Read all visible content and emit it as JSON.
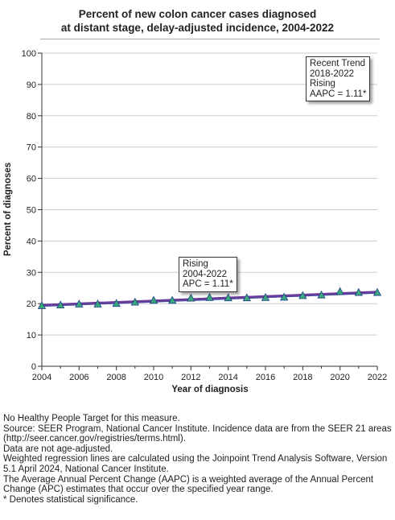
{
  "title_lines": [
    "Percent of new colon cancer cases diagnosed",
    "at distant stage, delay-adjusted incidence, 2004-2022"
  ],
  "annotations": {
    "recent": [
      "Recent Trend",
      "2018-2022",
      "Rising",
      "AAPC =  1.11*"
    ],
    "segment": [
      "Rising",
      "2004-2022",
      "APC =  1.11*"
    ]
  },
  "footnotes": [
    "No Healthy People Target for this measure.",
    "Source: SEER Program, National Cancer Institute. Incidence data are from the SEER 21 areas (http://seer.cancer.gov/registries/terms.html).",
    "Data are not age-adjusted.",
    "Weighted regression lines are calculated using the Joinpoint Trend Analysis Software, Version 5.1 April 2024, National Cancer Institute.",
    "The Average Annual Percent Change (AAPC) is a weighted average of the Annual Percent Change (APC) estimates that occur over the specified year range.",
    "* Denotes statistical significance."
  ],
  "colors": {
    "trend_line": "#6a3d9a",
    "trend_under": "#1f4fb0",
    "marker_fill": "#3aa87a",
    "marker_stroke": "#1f3f8a",
    "grid": "#cccccc"
  },
  "chart_data": {
    "type": "line",
    "xlabel": "Year of diagnosis",
    "ylabel": "Percent of diagnoses",
    "xlim": [
      2004,
      2022
    ],
    "ylim": [
      0,
      100
    ],
    "x_ticks": [
      2004,
      2006,
      2008,
      2010,
      2012,
      2014,
      2016,
      2018,
      2020,
      2022
    ],
    "y_ticks": [
      0,
      10,
      20,
      30,
      40,
      50,
      60,
      70,
      80,
      90,
      100
    ],
    "grid": true,
    "series": [
      {
        "kind": "observed",
        "x": [
          2004,
          2005,
          2006,
          2007,
          2008,
          2009,
          2010,
          2011,
          2012,
          2013,
          2014,
          2015,
          2016,
          2017,
          2018,
          2019,
          2020,
          2021,
          2022
        ],
        "values": [
          19.3,
          19.5,
          19.8,
          19.8,
          20.0,
          20.4,
          21.0,
          21.0,
          21.7,
          21.9,
          21.8,
          21.8,
          21.9,
          22.0,
          22.5,
          22.7,
          23.8,
          23.5,
          23.5
        ]
      },
      {
        "kind": "fitted",
        "x": [
          2004,
          2022
        ],
        "values": [
          19.5,
          23.7
        ]
      }
    ]
  }
}
